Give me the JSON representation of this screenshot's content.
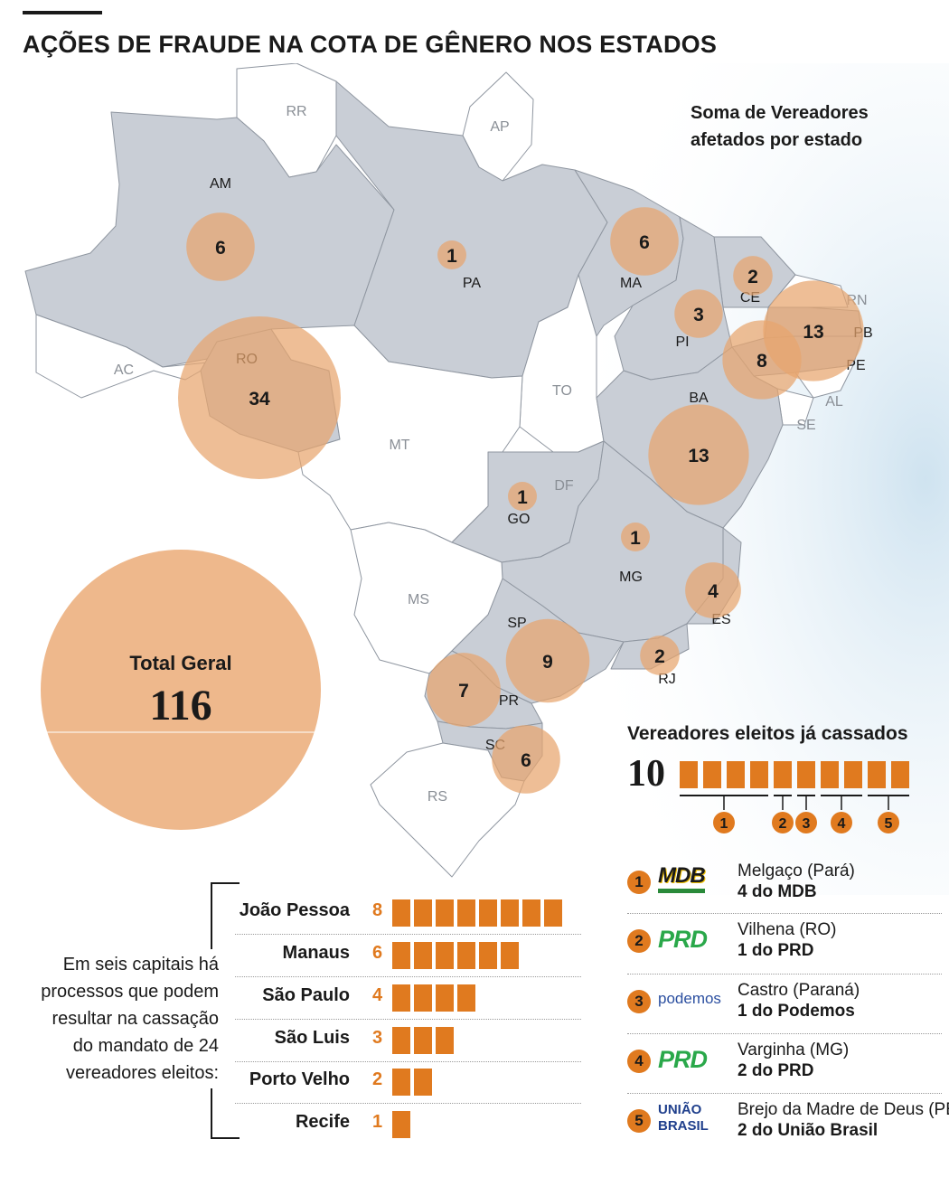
{
  "title": "AÇÕES DE FRAUDE NA COTA DE GÊNERO NOS ESTADOS",
  "legend_note": [
    "Soma de Vereadores",
    "afetados por estado"
  ],
  "states": [
    {
      "uf": "RR",
      "count": null
    },
    {
      "uf": "AP",
      "count": null
    },
    {
      "uf": "AM",
      "count": 6
    },
    {
      "uf": "PA",
      "count": 1
    },
    {
      "uf": "MA",
      "count": 6
    },
    {
      "uf": "CE",
      "count": 2
    },
    {
      "uf": "RN",
      "count": null
    },
    {
      "uf": "PI",
      "count": 3
    },
    {
      "uf": "PB",
      "count": 13
    },
    {
      "uf": "PE",
      "count": 8
    },
    {
      "uf": "AL",
      "count": null
    },
    {
      "uf": "SE",
      "count": null
    },
    {
      "uf": "AC",
      "count": null
    },
    {
      "uf": "RO",
      "count": 34
    },
    {
      "uf": "TO",
      "count": null
    },
    {
      "uf": "BA",
      "count": 13
    },
    {
      "uf": "MT",
      "count": null
    },
    {
      "uf": "DF",
      "count": null
    },
    {
      "uf": "GO",
      "count": 1
    },
    {
      "uf": "MG",
      "count": 1
    },
    {
      "uf": "ES",
      "count": 4
    },
    {
      "uf": "MS",
      "count": null
    },
    {
      "uf": "SP",
      "count": 9
    },
    {
      "uf": "RJ",
      "count": 2
    },
    {
      "uf": "PR",
      "count": 7
    },
    {
      "uf": "SC",
      "count": 6
    },
    {
      "uf": "RS",
      "count": null
    }
  ],
  "total": {
    "label": "Total Geral",
    "value": 116
  },
  "cassados": {
    "title": "Vereadores eleitos já cassados",
    "total": 10,
    "groups": [
      {
        "marker": "1",
        "count": 4
      },
      {
        "marker": "2",
        "count": 1
      },
      {
        "marker": "3",
        "count": 1
      },
      {
        "marker": "4",
        "count": 2
      },
      {
        "marker": "5",
        "count": 2
      }
    ]
  },
  "capitals_note": [
    "Em seis capitais há",
    "processos que podem",
    "resultar na cassação",
    "do mandato de 24",
    "vereadores eleitos:"
  ],
  "capitals": [
    {
      "name": "João Pessoa",
      "count": 8
    },
    {
      "name": "Manaus",
      "count": 6
    },
    {
      "name": "São Paulo",
      "count": 4
    },
    {
      "name": "São Luis",
      "count": 3
    },
    {
      "name": "Porto Velho",
      "count": 2
    },
    {
      "name": "Recife",
      "count": 1
    }
  ],
  "parties": [
    {
      "num": "1",
      "logo": "MDB",
      "city": "Melgaço (Pará)",
      "count_text": "4 do MDB"
    },
    {
      "num": "2",
      "logo": "PRD",
      "city": "Vilhena (RO)",
      "count_text": "1 do PRD"
    },
    {
      "num": "3",
      "logo": "podemos",
      "city": "Castro (Paraná)",
      "count_text": "1 do Podemos"
    },
    {
      "num": "4",
      "logo": "PRD",
      "city": "Varginha (MG)",
      "count_text": "2 do PRD"
    },
    {
      "num": "5",
      "logo": "UNIÃO BRASIL",
      "city": "Brejo da Madre de Deus (PE)",
      "count_text": "2 do União Brasil"
    }
  ],
  "colors": {
    "bubble": "#e8a56d",
    "accent": "#e07a1f",
    "affected_state": "#c9ced6",
    "ocean": "#dbe9f3",
    "text": "#1a1a1a"
  }
}
